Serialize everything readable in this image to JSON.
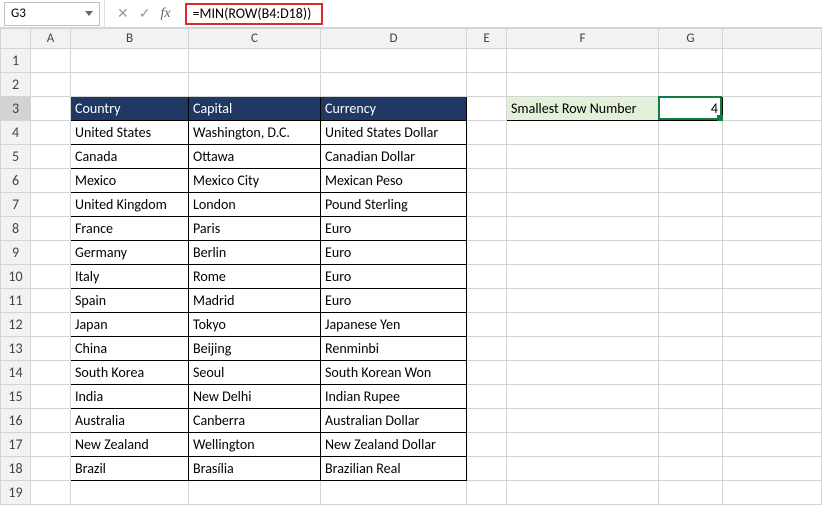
{
  "nameBox": {
    "value": "G3"
  },
  "formula": {
    "text": "=MIN(ROW(B4:D18))"
  },
  "columns": [
    "A",
    "B",
    "C",
    "D",
    "E",
    "F",
    "G"
  ],
  "rowCount": 19,
  "headers": {
    "country": "Country",
    "capital": "Capital",
    "currency": "Currency"
  },
  "sideLabel": "Smallest Row Number",
  "selectedValue": "4",
  "selectedCell": {
    "col": "G",
    "row": 3
  },
  "rows": [
    {
      "a": "United States",
      "b": "Washington, D.C.",
      "c": "United States Dollar"
    },
    {
      "a": "Canada",
      "b": "Ottawa",
      "c": "Canadian Dollar"
    },
    {
      "a": "Mexico",
      "b": "Mexico City",
      "c": "Mexican Peso"
    },
    {
      "a": "United Kingdom",
      "b": "London",
      "c": "Pound Sterling"
    },
    {
      "a": "France",
      "b": "Paris",
      "c": "Euro"
    },
    {
      "a": "Germany",
      "b": "Berlin",
      "c": "Euro"
    },
    {
      "a": "Italy",
      "b": "Rome",
      "c": "Euro"
    },
    {
      "a": "Spain",
      "b": "Madrid",
      "c": "Euro"
    },
    {
      "a": "Japan",
      "b": "Tokyo",
      "c": "Japanese Yen"
    },
    {
      "a": "China",
      "b": "Beijing",
      "c": "Renminbi"
    },
    {
      "a": "South Korea",
      "b": "Seoul",
      "c": "South Korean Won"
    },
    {
      "a": "India",
      "b": "New Delhi",
      "c": "Indian Rupee"
    },
    {
      "a": "Australia",
      "b": "Canberra",
      "c": "Australian Dollar"
    },
    {
      "a": "New Zealand",
      "b": "Wellington",
      "c": "New Zealand Dollar"
    },
    {
      "a": "Brazil",
      "b": "Brasília",
      "c": "Brazilian Real"
    }
  ],
  "colors": {
    "headerBg": "#1f3864",
    "headerFg": "#ffffff",
    "greenBg": "#e2efd9",
    "selection": "#107c41",
    "highlightBorder": "#d92b2b"
  }
}
